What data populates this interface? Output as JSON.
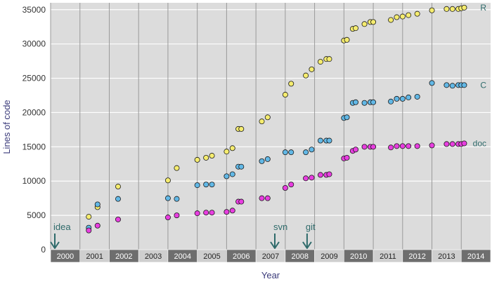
{
  "chart_data": {
    "type": "scatter",
    "title": "",
    "xlabel": "Year",
    "ylabel": "Lines of code",
    "xlim": [
      2000,
      2015
    ],
    "ylim": [
      0,
      36000
    ],
    "yticks": [
      0,
      5000,
      10000,
      15000,
      20000,
      25000,
      30000,
      35000
    ],
    "ytick_labels": [
      "0",
      "5000",
      "10000",
      "15000",
      "20000",
      "25000",
      "30000",
      "35000"
    ],
    "year_labels": [
      "2000",
      "2001",
      "2002",
      "2003",
      "2004",
      "2005",
      "2006",
      "2007",
      "2008",
      "2009",
      "2010",
      "2011",
      "2012",
      "2013",
      "2014"
    ],
    "grid": true,
    "background_color": "#dcdcdc",
    "grid_color": "#ffffff",
    "vline_color": "#9a9a9a",
    "year_band_dark": "#6e6e6e",
    "year_band_light": "#cfcfcf",
    "label_color": "#3a3a7a",
    "annotation_color": "#2e6a6a",
    "series": [
      {
        "name": "R",
        "color": "#f5ec6f",
        "points": [
          [
            2001.3,
            4800
          ],
          [
            2001.6,
            6200
          ],
          [
            2002.3,
            9200
          ],
          [
            2004.0,
            10100
          ],
          [
            2004.3,
            11900
          ],
          [
            2005.0,
            13100
          ],
          [
            2005.3,
            13400
          ],
          [
            2005.5,
            13700
          ],
          [
            2006.0,
            14300
          ],
          [
            2006.2,
            14800
          ],
          [
            2006.4,
            17600
          ],
          [
            2006.5,
            17600
          ],
          [
            2007.2,
            18700
          ],
          [
            2007.4,
            19300
          ],
          [
            2008.0,
            22600
          ],
          [
            2008.2,
            24200
          ],
          [
            2008.7,
            25400
          ],
          [
            2008.9,
            26300
          ],
          [
            2009.2,
            27400
          ],
          [
            2009.4,
            27800
          ],
          [
            2009.5,
            27800
          ],
          [
            2010.0,
            30500
          ],
          [
            2010.1,
            30600
          ],
          [
            2010.3,
            32200
          ],
          [
            2010.4,
            32300
          ],
          [
            2010.7,
            32900
          ],
          [
            2010.9,
            33200
          ],
          [
            2011.0,
            33200
          ],
          [
            2011.6,
            33500
          ],
          [
            2011.8,
            33900
          ],
          [
            2012.0,
            34000
          ],
          [
            2012.2,
            34200
          ],
          [
            2012.5,
            34400
          ],
          [
            2013.0,
            34900
          ],
          [
            2013.5,
            35100
          ],
          [
            2013.7,
            35100
          ],
          [
            2013.9,
            35100
          ],
          [
            2014.0,
            35200
          ],
          [
            2014.1,
            35300
          ]
        ]
      },
      {
        "name": "C",
        "color": "#62b8e6",
        "points": [
          [
            2001.3,
            3200
          ],
          [
            2001.6,
            6600
          ],
          [
            2002.3,
            7400
          ],
          [
            2004.0,
            7500
          ],
          [
            2004.3,
            7400
          ],
          [
            2005.0,
            9400
          ],
          [
            2005.3,
            9500
          ],
          [
            2005.5,
            9500
          ],
          [
            2006.0,
            10700
          ],
          [
            2006.2,
            11000
          ],
          [
            2006.4,
            12100
          ],
          [
            2006.5,
            12100
          ],
          [
            2007.2,
            12900
          ],
          [
            2007.4,
            13200
          ],
          [
            2008.0,
            14200
          ],
          [
            2008.2,
            14200
          ],
          [
            2008.7,
            14200
          ],
          [
            2008.9,
            14600
          ],
          [
            2009.2,
            15900
          ],
          [
            2009.4,
            15900
          ],
          [
            2009.5,
            15900
          ],
          [
            2010.0,
            19200
          ],
          [
            2010.1,
            19300
          ],
          [
            2010.3,
            21400
          ],
          [
            2010.4,
            21500
          ],
          [
            2010.7,
            21400
          ],
          [
            2010.9,
            21500
          ],
          [
            2011.0,
            21500
          ],
          [
            2011.6,
            21600
          ],
          [
            2011.8,
            22000
          ],
          [
            2012.0,
            22000
          ],
          [
            2012.2,
            22200
          ],
          [
            2012.5,
            22300
          ],
          [
            2013.0,
            24300
          ],
          [
            2013.5,
            24000
          ],
          [
            2013.7,
            23900
          ],
          [
            2013.9,
            24000
          ],
          [
            2014.0,
            24000
          ],
          [
            2014.1,
            24000
          ]
        ]
      },
      {
        "name": "doc",
        "color": "#e83ee0",
        "points": [
          [
            2001.3,
            2800
          ],
          [
            2001.6,
            3500
          ],
          [
            2002.3,
            4400
          ],
          [
            2004.0,
            4700
          ],
          [
            2004.3,
            5000
          ],
          [
            2005.0,
            5300
          ],
          [
            2005.3,
            5400
          ],
          [
            2005.5,
            5400
          ],
          [
            2006.0,
            5500
          ],
          [
            2006.2,
            5700
          ],
          [
            2006.4,
            7000
          ],
          [
            2006.5,
            7000
          ],
          [
            2007.2,
            7500
          ],
          [
            2007.4,
            7500
          ],
          [
            2008.0,
            9000
          ],
          [
            2008.2,
            9500
          ],
          [
            2008.7,
            10400
          ],
          [
            2008.9,
            10500
          ],
          [
            2009.2,
            10900
          ],
          [
            2009.4,
            10900
          ],
          [
            2009.5,
            11000
          ],
          [
            2010.0,
            13300
          ],
          [
            2010.1,
            13400
          ],
          [
            2010.3,
            14400
          ],
          [
            2010.4,
            14600
          ],
          [
            2010.7,
            15000
          ],
          [
            2010.9,
            15000
          ],
          [
            2011.0,
            15000
          ],
          [
            2011.6,
            14900
          ],
          [
            2011.8,
            15100
          ],
          [
            2012.0,
            15100
          ],
          [
            2012.2,
            15100
          ],
          [
            2012.5,
            15100
          ],
          [
            2013.0,
            15200
          ],
          [
            2013.5,
            15400
          ],
          [
            2013.7,
            15400
          ],
          [
            2013.9,
            15400
          ],
          [
            2014.0,
            15400
          ],
          [
            2014.1,
            15500
          ]
        ]
      }
    ],
    "annotations": [
      {
        "label": "idea",
        "x": 2000.0
      },
      {
        "label": "svn",
        "x": 2007.5
      },
      {
        "label": "git",
        "x": 2008.6
      }
    ]
  }
}
